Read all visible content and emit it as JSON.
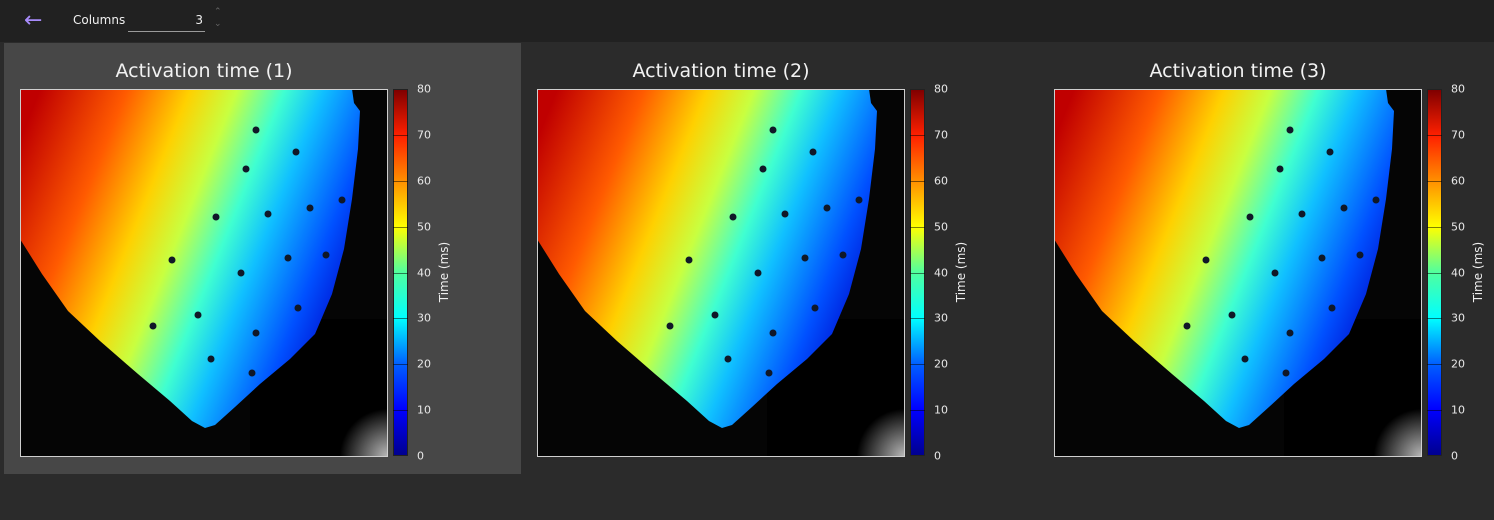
{
  "toolbar": {
    "back_icon": "arrow-left-icon",
    "columns_label": "Columns",
    "columns_value": "3"
  },
  "panels": [
    {
      "title": "Activation time (1)",
      "selected": true
    },
    {
      "title": "Activation time (2)",
      "selected": false
    },
    {
      "title": "Activation time (3)",
      "selected": false
    }
  ],
  "colorbar": {
    "label": "Time (ms)",
    "ticks": [
      "80",
      "70",
      "60",
      "50",
      "40",
      "30",
      "20",
      "10",
      "0"
    ],
    "range": [
      0,
      80
    ],
    "colormap": "jet"
  },
  "colors": {
    "accent": "#a78bfa",
    "panel_selected": "#474747",
    "background": "#2b2b2b",
    "toolbar": "#212121"
  }
}
